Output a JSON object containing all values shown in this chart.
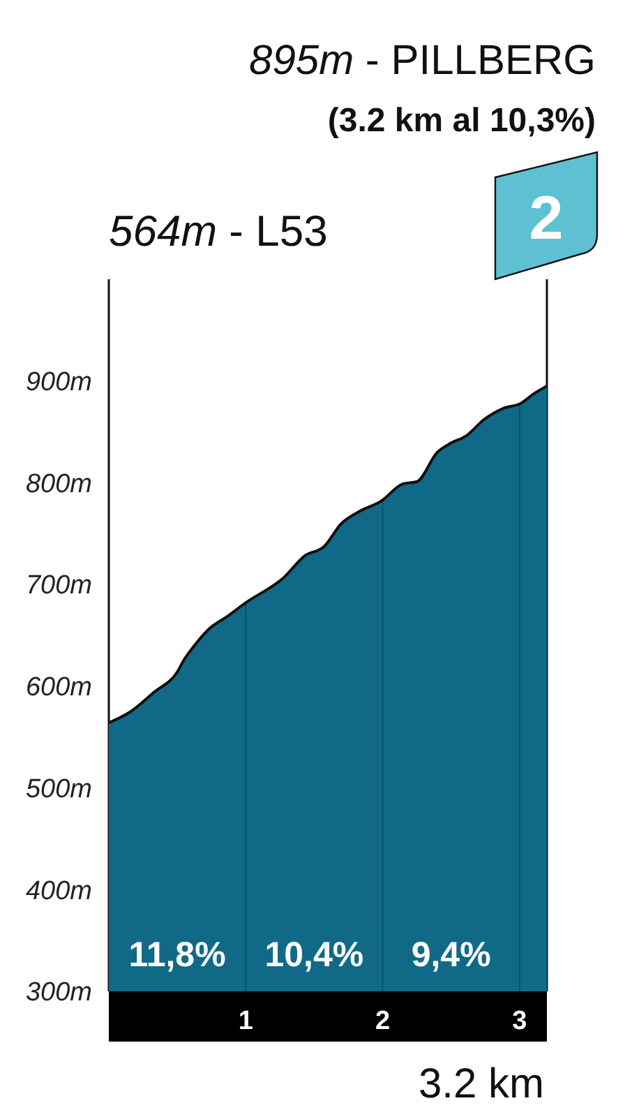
{
  "chart_data": {
    "type": "area",
    "title": "895m - PILLBERG",
    "subtitle": "(3.2 km al 10,3%)",
    "xlabel": "3.2 km",
    "x": [
      0,
      0.16,
      0.33,
      0.5,
      0.55,
      0.62,
      0.73,
      0.87,
      1.0,
      1.28,
      1.43,
      1.57,
      1.7,
      1.82,
      1.99,
      2.15,
      2.25,
      2.4,
      2.5,
      2.61,
      2.74,
      2.88,
      3.01,
      3.1,
      3.2
    ],
    "values": [
      564,
      575,
      594,
      614,
      626,
      639,
      656,
      669,
      682,
      707,
      728,
      737,
      760,
      771,
      782,
      799,
      801,
      830,
      839,
      846,
      862,
      873,
      878,
      887,
      895
    ],
    "color": "#106a87",
    "xlim": [
      0,
      3.2
    ],
    "xticks": [
      1,
      2,
      3
    ],
    "ylim": [
      300,
      1000
    ],
    "yticks": [
      {
        "value": 300,
        "label": "300m"
      },
      {
        "value": 400,
        "label": "400m"
      },
      {
        "value": 500,
        "label": "500m"
      },
      {
        "value": 600,
        "label": "600m"
      },
      {
        "value": 700,
        "label": "700m"
      },
      {
        "value": 800,
        "label": "800m"
      },
      {
        "value": 900,
        "label": "900m"
      }
    ],
    "grid": "x",
    "annotations": [
      "564m - L53",
      "2",
      "11,8%",
      "10,4%",
      "9,4%"
    ]
  }
}
